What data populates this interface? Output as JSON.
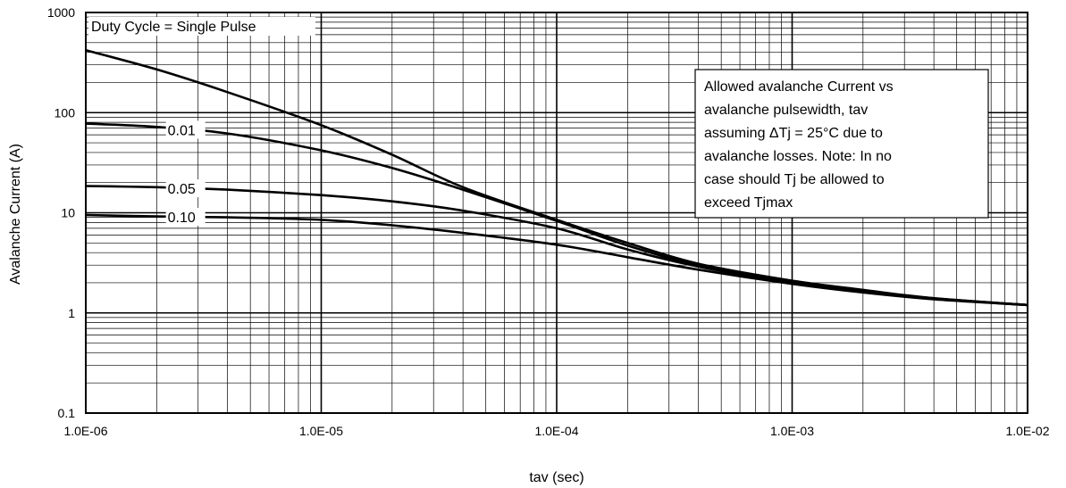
{
  "chart_data": {
    "type": "line",
    "xscale": "log",
    "yscale": "log",
    "xlim": [
      1e-06,
      0.01
    ],
    "ylim": [
      0.1,
      1000
    ],
    "xlabel": "tav (sec)",
    "ylabel": "Avalanche Current (A)",
    "x_tick_labels": [
      "1.0E-06",
      "1.0E-05",
      "1.0E-04",
      "1.0E-03",
      "1.0E-02"
    ],
    "y_tick_labels": [
      "0.1",
      "1",
      "10",
      "100",
      "1000"
    ],
    "grid": true,
    "duty_cycle_label": "Duty Cycle = Single Pulse",
    "note_lines": [
      "Allowed avalanche Current vs",
      "avalanche pulsewidth, tav",
      "assuming ΔTj = 25°C due to",
      "avalanche losses. Note: In no",
      "case should Tj be allowed to",
      "exceed Tjmax"
    ],
    "series": [
      {
        "label": "",
        "x": [
          1e-06,
          2e-06,
          4e-06,
          1e-05,
          2e-05,
          4e-05,
          0.0001,
          0.0002,
          0.0004,
          0.001,
          0.002,
          0.004,
          0.01
        ],
        "y": [
          420,
          270,
          160,
          75,
          38,
          18,
          8.5,
          5.0,
          3.1,
          2.1,
          1.7,
          1.4,
          1.2
        ]
      },
      {
        "label": "0.01",
        "x": [
          1e-06,
          2e-06,
          4e-06,
          1e-05,
          2e-05,
          4e-05,
          0.0001,
          0.0002,
          0.0004,
          0.001,
          0.002,
          0.004,
          0.01
        ],
        "y": [
          78,
          72,
          62,
          42,
          28,
          17,
          8.3,
          4.7,
          3.0,
          2.05,
          1.65,
          1.4,
          1.2
        ]
      },
      {
        "label": "0.05",
        "x": [
          1e-06,
          2e-06,
          4e-06,
          1e-05,
          2e-05,
          4e-05,
          0.0001,
          0.0002,
          0.0004,
          0.001,
          0.002,
          0.004,
          0.01
        ],
        "y": [
          18.5,
          18,
          17,
          15,
          13,
          10.5,
          7.0,
          4.3,
          2.9,
          2.0,
          1.62,
          1.38,
          1.2
        ]
      },
      {
        "label": "0.10",
        "x": [
          1e-06,
          2e-06,
          4e-06,
          1e-05,
          2e-05,
          4e-05,
          0.0001,
          0.0002,
          0.0004,
          0.001,
          0.002,
          0.004,
          0.01
        ],
        "y": [
          9.5,
          9.2,
          9.0,
          8.5,
          7.5,
          6.3,
          4.8,
          3.6,
          2.7,
          1.95,
          1.6,
          1.37,
          1.2
        ]
      }
    ]
  }
}
